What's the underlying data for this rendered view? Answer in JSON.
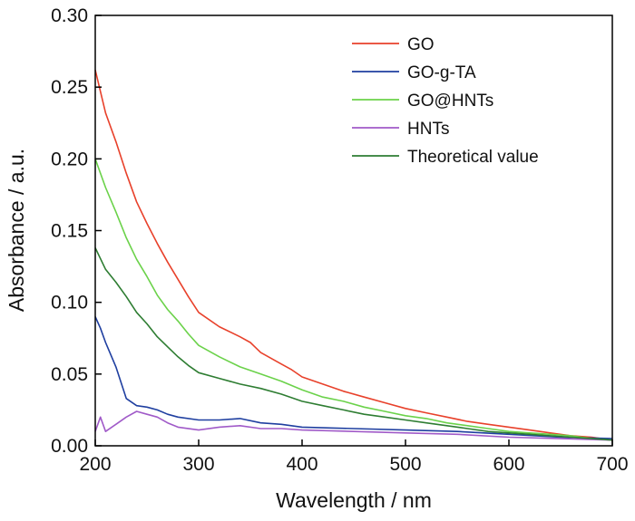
{
  "chart_data": {
    "type": "line",
    "xlabel": "Wavelength / nm",
    "ylabel": "Absorbance / a.u.",
    "xlim": [
      200,
      700
    ],
    "ylim": [
      0.0,
      0.3
    ],
    "xticks": [
      200,
      300,
      400,
      500,
      600,
      700
    ],
    "xtick_labels": [
      "200",
      "300",
      "400",
      "500",
      "600",
      "700"
    ],
    "yticks": [
      0.0,
      0.05,
      0.1,
      0.15,
      0.2,
      0.25,
      0.3
    ],
    "ytick_labels": [
      "0.00",
      "0.05",
      "0.10",
      "0.15",
      "0.20",
      "0.25",
      "0.30"
    ],
    "grid": false,
    "legend_position": "top-right",
    "series": [
      {
        "name": "GO",
        "color": "#e8412b",
        "x": [
          200,
          210,
          220,
          230,
          240,
          250,
          260,
          270,
          280,
          290,
          300,
          320,
          340,
          350,
          360,
          370,
          380,
          390,
          400,
          420,
          440,
          460,
          480,
          500,
          520,
          540,
          560,
          580,
          600,
          620,
          640,
          660,
          680,
          700
        ],
        "y": [
          0.262,
          0.232,
          0.212,
          0.19,
          0.17,
          0.155,
          0.141,
          0.128,
          0.116,
          0.104,
          0.093,
          0.083,
          0.076,
          0.072,
          0.065,
          0.061,
          0.057,
          0.053,
          0.048,
          0.043,
          0.038,
          0.034,
          0.03,
          0.026,
          0.023,
          0.02,
          0.017,
          0.015,
          0.013,
          0.011,
          0.009,
          0.007,
          0.006,
          0.004
        ]
      },
      {
        "name": "GO-g-TA",
        "color": "#1f3fa0",
        "x": [
          200,
          205,
          210,
          220,
          230,
          240,
          250,
          260,
          270,
          280,
          300,
          320,
          340,
          360,
          380,
          400,
          450,
          500,
          550,
          600,
          650,
          700
        ],
        "y": [
          0.09,
          0.082,
          0.072,
          0.055,
          0.033,
          0.028,
          0.027,
          0.025,
          0.022,
          0.02,
          0.018,
          0.018,
          0.019,
          0.016,
          0.015,
          0.013,
          0.012,
          0.011,
          0.01,
          0.008,
          0.006,
          0.005
        ]
      },
      {
        "name": "GO@HNTs",
        "color": "#6bd24a",
        "x": [
          200,
          210,
          220,
          230,
          240,
          250,
          260,
          270,
          280,
          290,
          300,
          320,
          340,
          360,
          380,
          400,
          420,
          440,
          460,
          480,
          500,
          520,
          540,
          560,
          580,
          600,
          620,
          640,
          660,
          680,
          700
        ],
        "y": [
          0.2,
          0.18,
          0.163,
          0.145,
          0.13,
          0.118,
          0.105,
          0.095,
          0.087,
          0.078,
          0.07,
          0.062,
          0.055,
          0.05,
          0.045,
          0.039,
          0.034,
          0.031,
          0.027,
          0.024,
          0.021,
          0.019,
          0.016,
          0.014,
          0.012,
          0.01,
          0.009,
          0.008,
          0.007,
          0.005,
          0.004
        ]
      },
      {
        "name": "HNTs",
        "color": "#a05ac8",
        "x": [
          200,
          205,
          210,
          220,
          230,
          240,
          250,
          260,
          270,
          280,
          300,
          320,
          340,
          360,
          380,
          400,
          450,
          500,
          550,
          600,
          650,
          700
        ],
        "y": [
          0.01,
          0.02,
          0.01,
          0.015,
          0.02,
          0.024,
          0.022,
          0.02,
          0.016,
          0.013,
          0.011,
          0.013,
          0.014,
          0.012,
          0.012,
          0.011,
          0.01,
          0.009,
          0.008,
          0.006,
          0.005,
          0.004
        ]
      },
      {
        "name": "Theoretical value",
        "color": "#2e7d32",
        "x": [
          200,
          210,
          220,
          230,
          240,
          250,
          260,
          270,
          280,
          290,
          300,
          320,
          340,
          360,
          380,
          400,
          420,
          440,
          460,
          480,
          500,
          520,
          540,
          560,
          580,
          600,
          620,
          640,
          660,
          680,
          700
        ],
        "y": [
          0.138,
          0.123,
          0.114,
          0.104,
          0.093,
          0.085,
          0.076,
          0.069,
          0.062,
          0.056,
          0.051,
          0.047,
          0.043,
          0.04,
          0.036,
          0.031,
          0.028,
          0.025,
          0.022,
          0.02,
          0.018,
          0.016,
          0.014,
          0.012,
          0.01,
          0.009,
          0.008,
          0.007,
          0.006,
          0.005,
          0.004
        ]
      }
    ]
  }
}
